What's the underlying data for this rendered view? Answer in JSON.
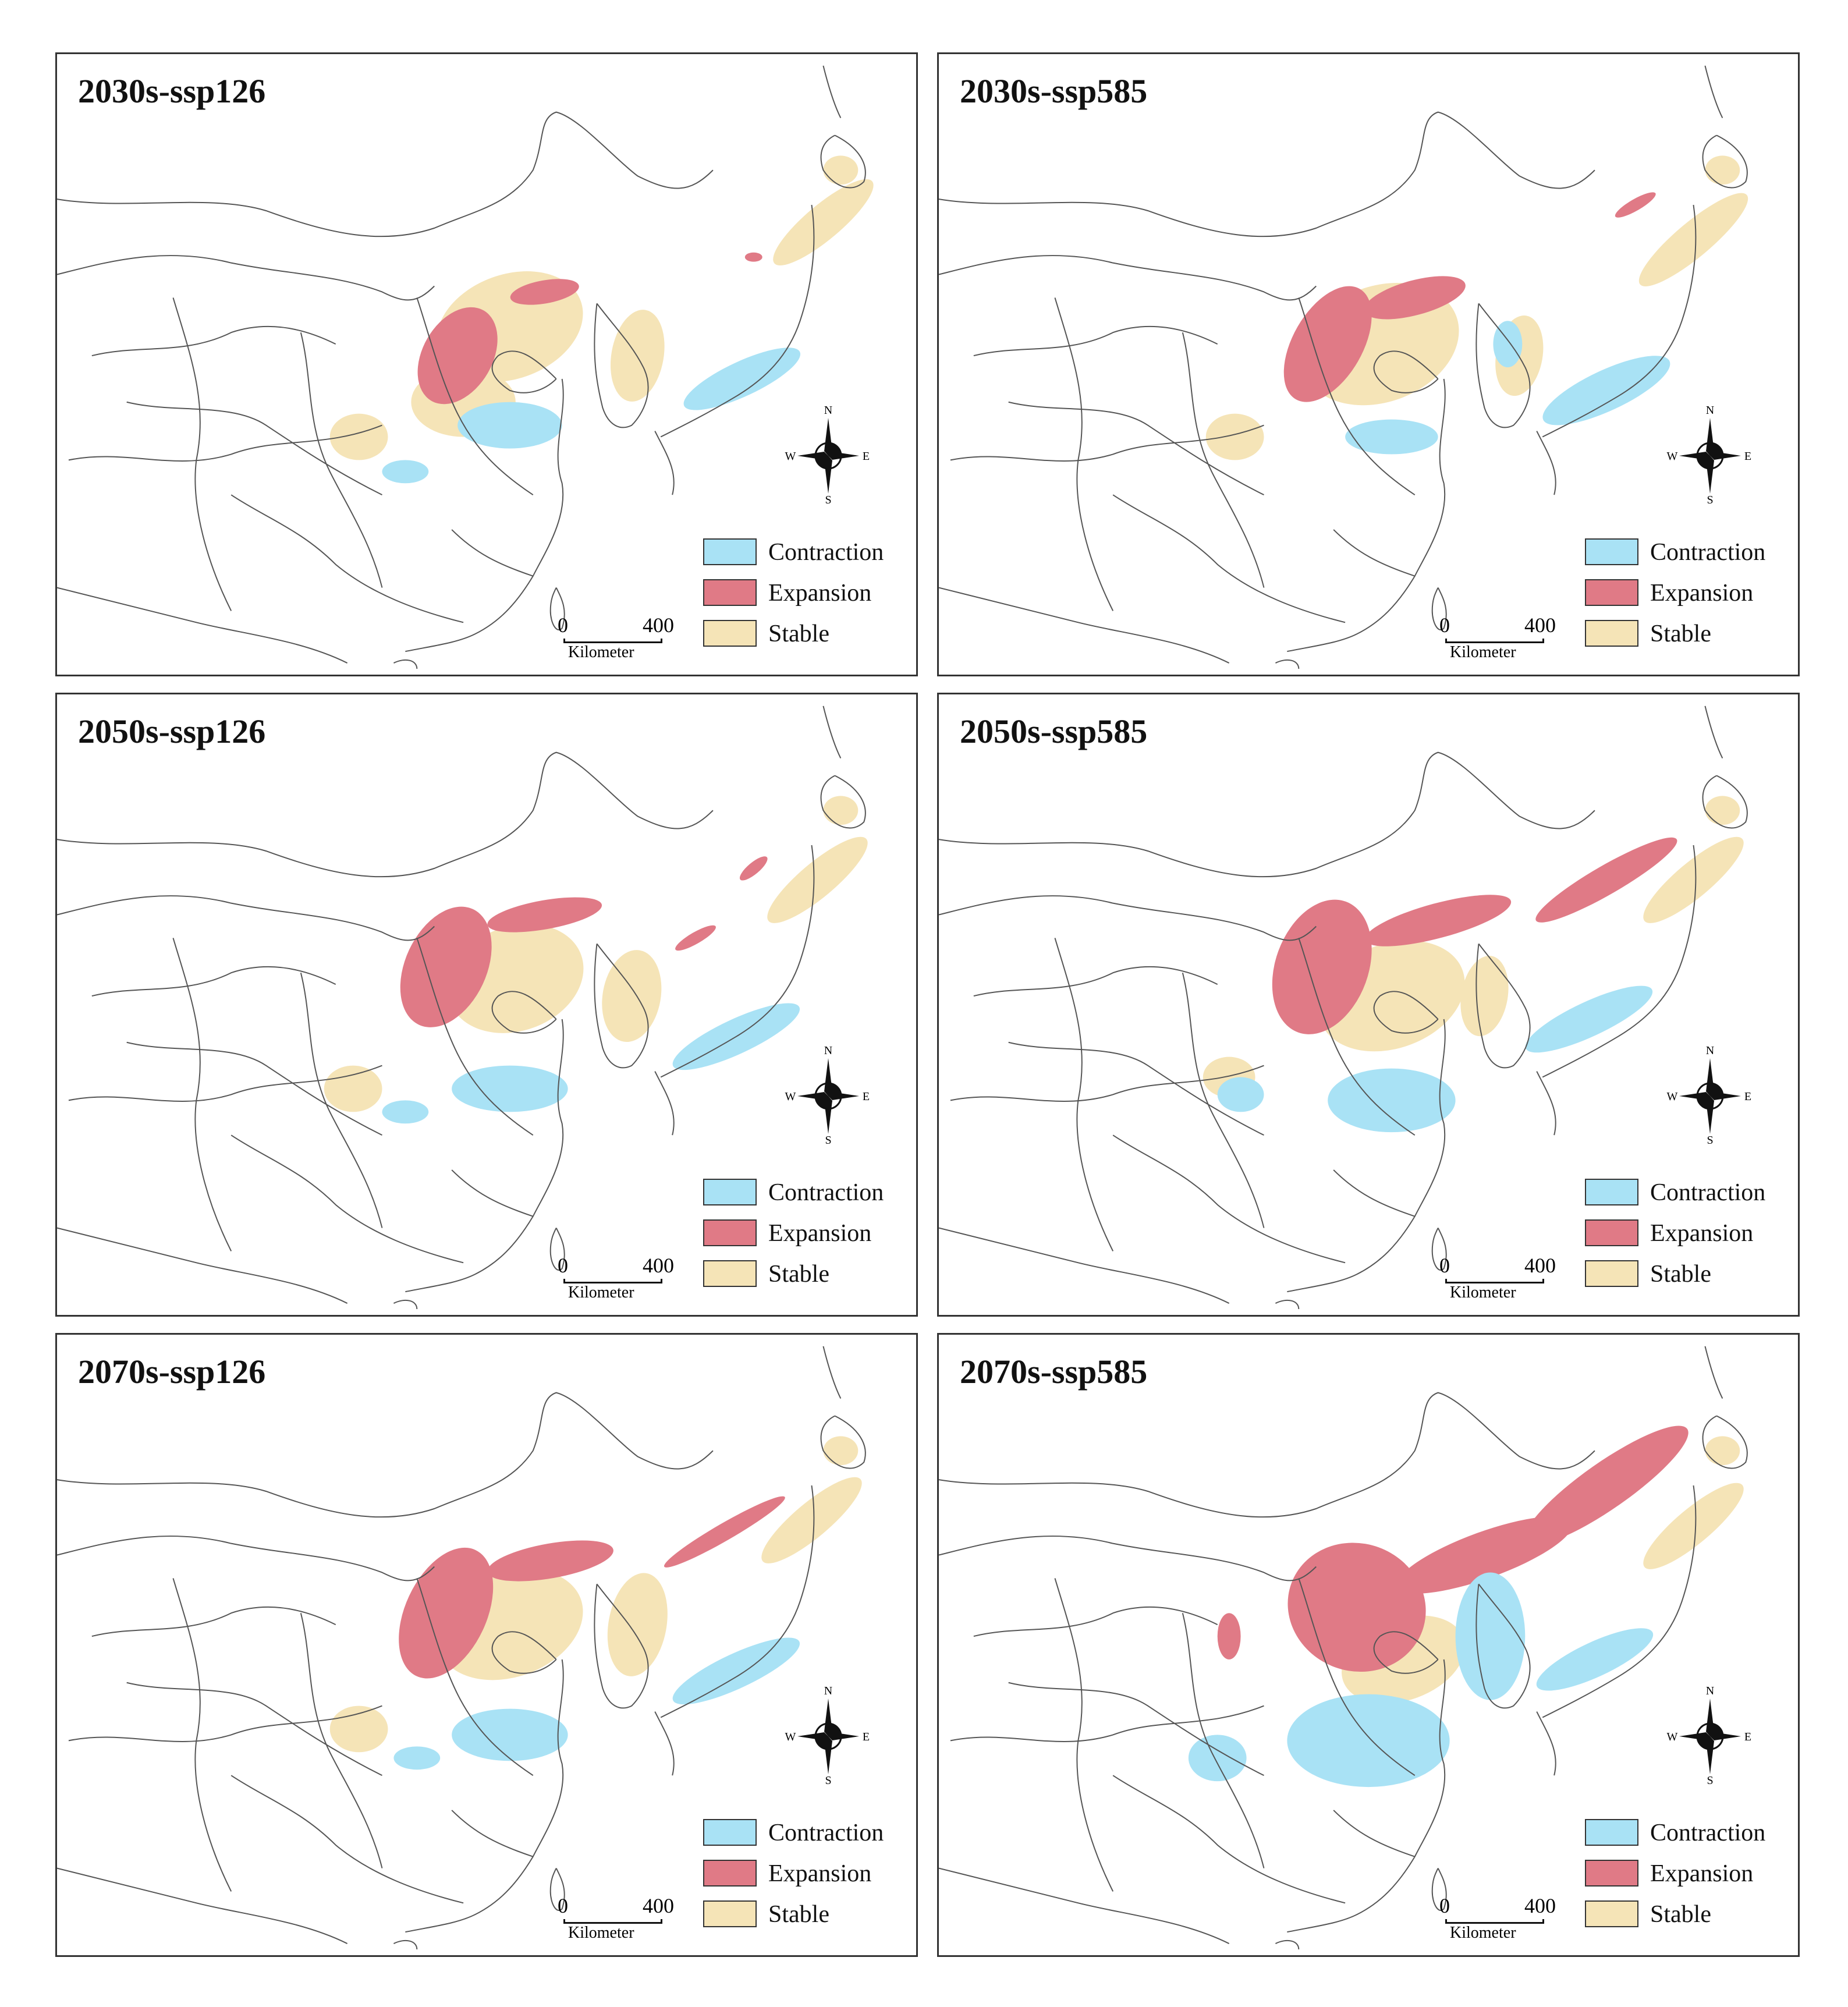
{
  "colors": {
    "contraction": "#a9e2f5",
    "expansion": "#e07a86",
    "stable": "#f5e4b7",
    "boundary": "#555555"
  },
  "legend": {
    "contraction": "Contraction",
    "expansion": "Expansion",
    "stable": "Stable"
  },
  "compass": {
    "n": "N",
    "s": "S",
    "e": "E",
    "w": "W"
  },
  "scale": {
    "zero": "0",
    "max": "400",
    "unit": "Kilometer"
  },
  "panels": [
    {
      "title": "2030s-ssp126"
    },
    {
      "title": "2030s-ssp585"
    },
    {
      "title": "2050s-ssp126"
    },
    {
      "title": "2050s-ssp585"
    },
    {
      "title": "2070s-ssp126"
    },
    {
      "title": "2070s-ssp585"
    }
  ]
}
